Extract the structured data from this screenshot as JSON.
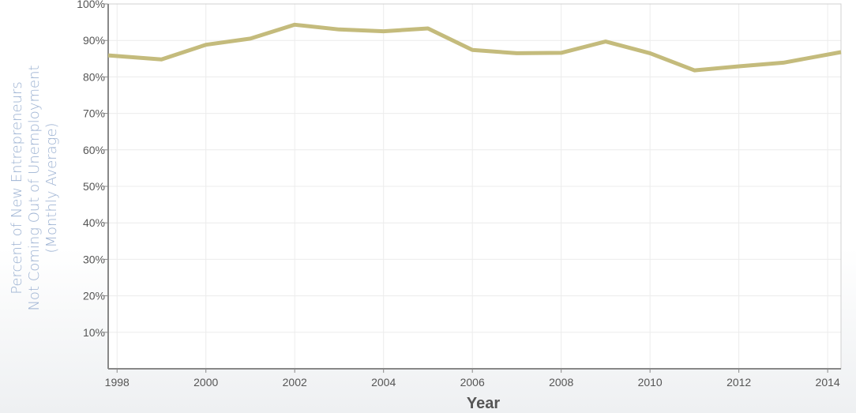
{
  "chart_data": {
    "type": "line",
    "xlabel": "Year",
    "ylabel_lines": [
      "Percent of New Entrepreneurs",
      "Not Coming Out of Unemployment",
      "(Monthly Average)"
    ],
    "xlim": [
      1997.8,
      2014.3
    ],
    "ylim": [
      0,
      100
    ],
    "x_ticks": [
      1998,
      2000,
      2002,
      2004,
      2006,
      2008,
      2010,
      2012,
      2014
    ],
    "x_tick_labels": [
      "1998",
      "2000",
      "2002",
      "2004",
      "2006",
      "2008",
      "2010",
      "2012",
      "2014"
    ],
    "y_ticks": [
      10,
      20,
      30,
      40,
      50,
      60,
      70,
      80,
      90,
      100
    ],
    "y_tick_labels": [
      "10%",
      "20%",
      "30%",
      "40%",
      "50%",
      "60%",
      "70%",
      "80%",
      "90%",
      "100%"
    ],
    "grid": true,
    "series": [
      {
        "x": [
          1997.8,
          1999,
          2000,
          2001,
          2002,
          2003,
          2004,
          2005,
          2006,
          2007,
          2008,
          2009,
          2010,
          2011,
          2012,
          2013,
          2014.3
        ],
        "values": [
          85.9,
          84.8,
          88.8,
          90.5,
          94.3,
          93.0,
          92.5,
          93.3,
          87.4,
          86.5,
          86.6,
          89.7,
          86.5,
          81.8,
          82.9,
          83.9,
          86.8
        ]
      }
    ],
    "colors": {
      "line": "#c4bb7c",
      "grid": "#ececec",
      "axis": "#888888",
      "ylabel": "#9eb3d3"
    }
  }
}
